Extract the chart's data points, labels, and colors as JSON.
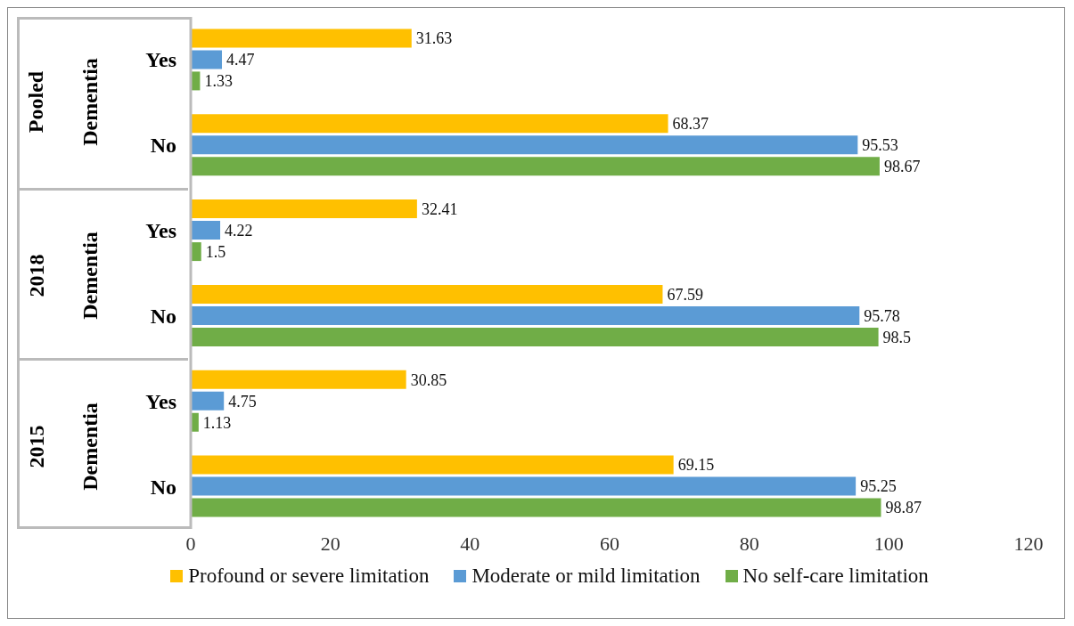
{
  "chart_data": {
    "type": "bar",
    "orientation": "horizontal",
    "categories": [
      "Yes",
      "No",
      "Yes",
      "No",
      "Yes",
      "No"
    ],
    "series": [
      {
        "name": "Profound or severe limitation",
        "color": "#ffc000",
        "values": [
          31.63,
          68.37,
          32.41,
          67.59,
          30.85,
          69.15
        ]
      },
      {
        "name": "Moderate or mild limitation",
        "color": "#5b9bd5",
        "values": [
          4.47,
          95.53,
          4.22,
          95.78,
          4.75,
          95.25
        ]
      },
      {
        "name": "No self-care limitation",
        "color": "#70ad47",
        "values": [
          1.33,
          98.67,
          1.5,
          98.5,
          1.13,
          98.87
        ]
      }
    ],
    "xlim": [
      0,
      120
    ],
    "xticks": [
      0,
      20,
      40,
      60,
      80,
      100,
      120
    ],
    "legend": "bottom",
    "data_labels": true,
    "annotations": [
      "Pooled",
      "Dementia",
      "2018",
      "Dementia",
      "2015",
      "Dementia"
    ]
  }
}
